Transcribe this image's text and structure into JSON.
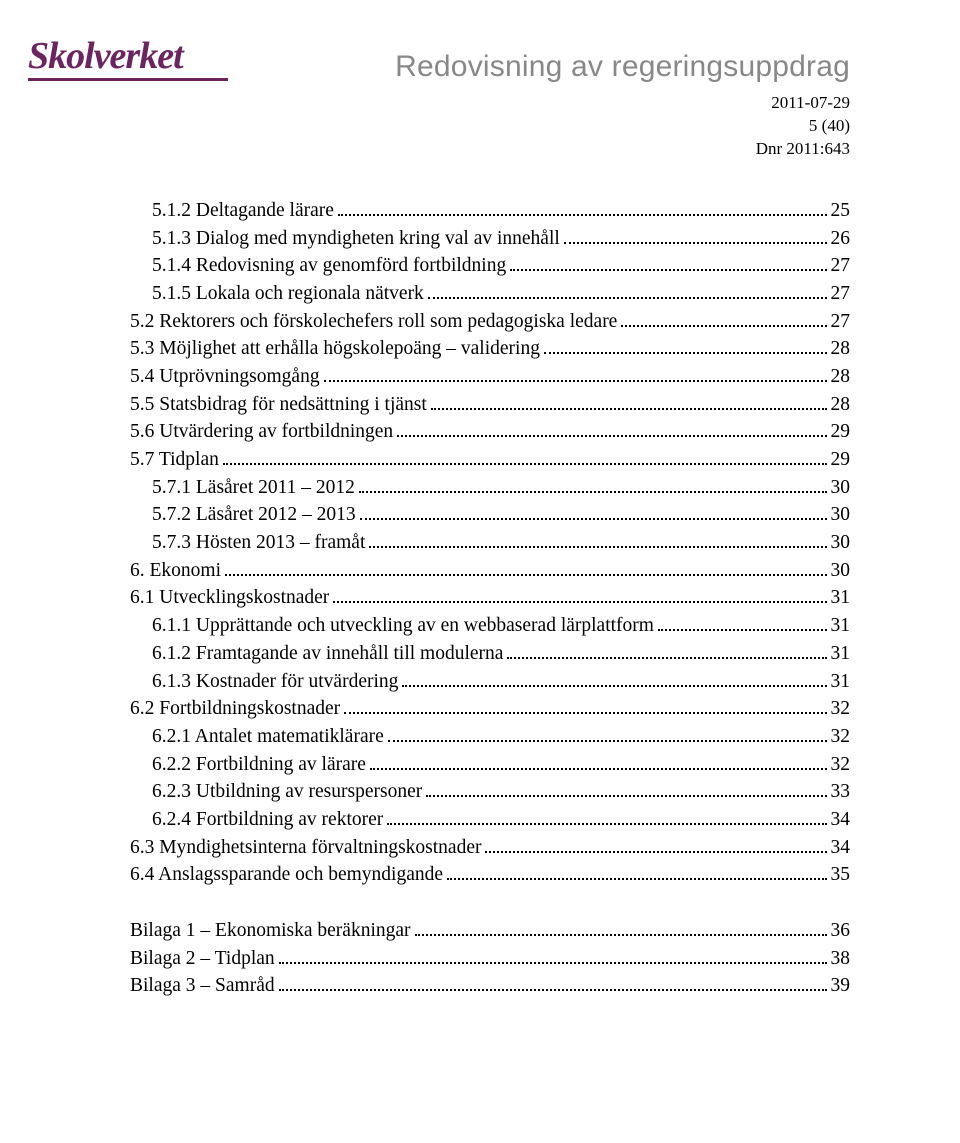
{
  "logo_text": "Skolverket",
  "header": {
    "title": "Redovisning av regeringsuppdrag",
    "date": "2011-07-29",
    "page_of": "5 (40)",
    "dnr": "Dnr 2011:643"
  },
  "toc": [
    {
      "indent": 1,
      "label": "5.1.2 Deltagande lärare",
      "page": "25"
    },
    {
      "indent": 1,
      "label": "5.1.3 Dialog med myndigheten kring val av innehåll",
      "page": "26"
    },
    {
      "indent": 1,
      "label": "5.1.4 Redovisning av genomförd fortbildning",
      "page": "27"
    },
    {
      "indent": 1,
      "label": "5.1.5 Lokala och regionala nätverk",
      "page": "27"
    },
    {
      "indent": 0,
      "label": "5.2 Rektorers och förskolechefers roll som pedagogiska ledare",
      "page": "27"
    },
    {
      "indent": 0,
      "label": "5.3 Möjlighet att erhålla högskolepoäng – validering",
      "page": "28"
    },
    {
      "indent": 0,
      "label": "5.4 Utprövningsomgång",
      "page": "28"
    },
    {
      "indent": 0,
      "label": "5.5 Statsbidrag för nedsättning i tjänst",
      "page": "28"
    },
    {
      "indent": 0,
      "label": "5.6 Utvärdering av fortbildningen",
      "page": "29"
    },
    {
      "indent": 0,
      "label": "5.7 Tidplan",
      "page": "29"
    },
    {
      "indent": 1,
      "label": "5.7.1 Läsåret 2011 – 2012",
      "page": "30"
    },
    {
      "indent": 1,
      "label": "5.7.2 Läsåret 2012 – 2013",
      "page": "30"
    },
    {
      "indent": 1,
      "label": "5.7.3 Hösten 2013 – framåt",
      "page": "30"
    },
    {
      "indent": 0,
      "label": "6. Ekonomi",
      "page": "30"
    },
    {
      "indent": 0,
      "label": "6.1 Utvecklingskostnader",
      "page": "31"
    },
    {
      "indent": 1,
      "label": "6.1.1 Upprättande och utveckling av en webbaserad lärplattform",
      "page": "31"
    },
    {
      "indent": 1,
      "label": "6.1.2 Framtagande av innehåll till modulerna",
      "page": "31"
    },
    {
      "indent": 1,
      "label": "6.1.3 Kostnader för utvärdering",
      "page": "31"
    },
    {
      "indent": 0,
      "label": "6.2 Fortbildningskostnader",
      "page": "32"
    },
    {
      "indent": 1,
      "label": "6.2.1 Antalet matematiklärare",
      "page": "32"
    },
    {
      "indent": 1,
      "label": "6.2.2 Fortbildning av lärare",
      "page": "32"
    },
    {
      "indent": 1,
      "label": "6.2.3 Utbildning av resurspersoner",
      "page": "33"
    },
    {
      "indent": 1,
      "label": "6.2.4 Fortbildning av rektorer",
      "page": "34"
    },
    {
      "indent": 0,
      "label": "6.3 Myndighetsinterna förvaltningskostnader",
      "page": "34"
    },
    {
      "indent": 0,
      "label": "6.4 Anslagssparande och bemyndigande",
      "page": "35"
    }
  ],
  "appendices": [
    {
      "label": "Bilaga 1 – Ekonomiska beräkningar",
      "page": "36"
    },
    {
      "label": "Bilaga 2 – Tidplan",
      "page": "38"
    },
    {
      "label": "Bilaga 3 – Samråd",
      "page": "39"
    }
  ]
}
